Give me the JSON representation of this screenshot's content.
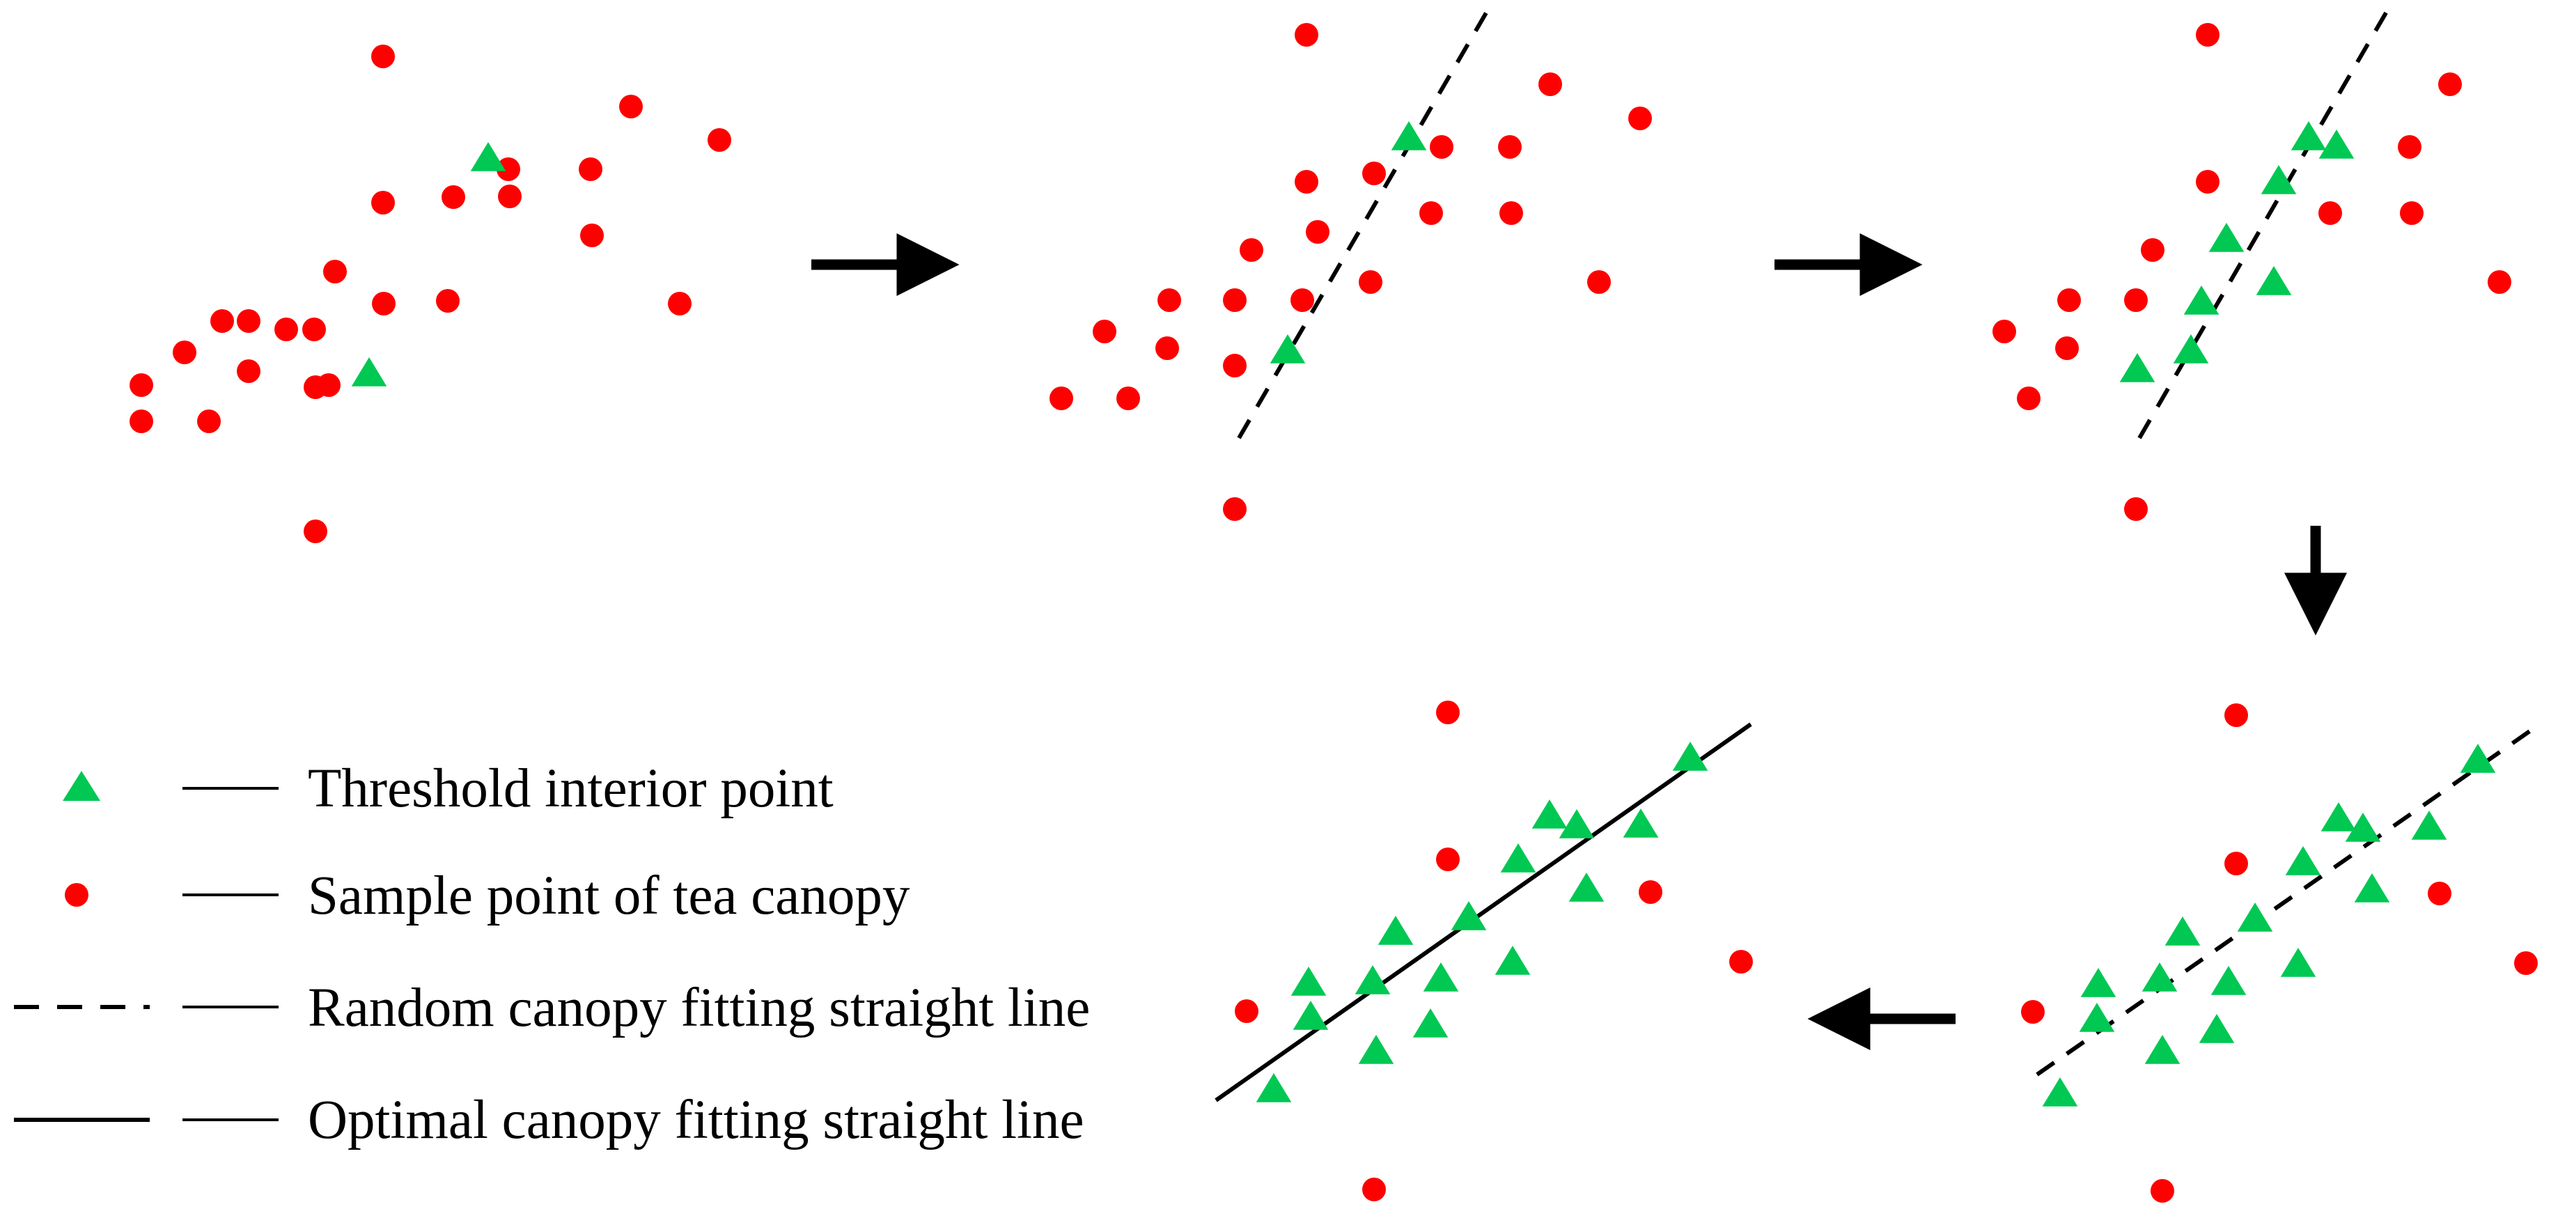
{
  "colors": {
    "sample": "#ff0000",
    "inlier": "#00c853",
    "line": "#000000",
    "background": "#ffffff"
  },
  "legend": [
    {
      "symbol": "triangle",
      "label": "Threshold interior point"
    },
    {
      "symbol": "circle",
      "label": "Sample point of tea canopy"
    },
    {
      "symbol": "dashed-line",
      "label": "Random canopy fitting straight line"
    },
    {
      "symbol": "solid-line",
      "label": "Optimal canopy fitting straight line"
    }
  ],
  "panels": [
    {
      "name": "panel-1-initial-samples",
      "line": null,
      "circles": [
        [
          550,
          81
        ],
        [
          550,
          291
        ],
        [
          481,
          390
        ],
        [
          451,
          473
        ],
        [
          411,
          473
        ],
        [
          357,
          461
        ],
        [
          319,
          461
        ],
        [
          203,
          553
        ],
        [
          472,
          553
        ],
        [
          357,
          533
        ],
        [
          265,
          506
        ],
        [
          551,
          436
        ],
        [
          643,
          432
        ],
        [
          732,
          282
        ],
        [
          730,
          243
        ],
        [
          848,
          243
        ],
        [
          850,
          338
        ],
        [
          976,
          436
        ],
        [
          1033,
          201
        ],
        [
          906,
          153
        ],
        [
          453,
          556
        ],
        [
          453,
          763
        ],
        [
          300,
          605
        ],
        [
          203,
          605
        ],
        [
          651,
          283
        ]
      ],
      "triangles": [
        [
          701,
          226
        ],
        [
          530,
          535
        ]
      ]
    },
    {
      "name": "panel-2-random-fit",
      "line": {
        "style": "dashed",
        "from": [
          1779,
          629
        ],
        "to": [
          2136,
          15
        ]
      },
      "circles": [
        [
          1876,
          50
        ],
        [
          1876,
          261
        ],
        [
          1797,
          359
        ],
        [
          1773,
          431
        ],
        [
          1773,
          525
        ],
        [
          1679,
          431
        ],
        [
          1676,
          500
        ],
        [
          1586,
          476
        ],
        [
          1524,
          572
        ],
        [
          1620,
          572
        ],
        [
          1892,
          333
        ],
        [
          1870,
          431
        ],
        [
          1968,
          405
        ],
        [
          1973,
          249
        ],
        [
          2070,
          211
        ],
        [
          2055,
          306
        ],
        [
          2170,
          306
        ],
        [
          2168,
          211
        ],
        [
          2226,
          121
        ],
        [
          2355,
          170
        ],
        [
          2296,
          405
        ],
        [
          1773,
          731
        ]
      ],
      "triangles": [
        [
          2023,
          196
        ],
        [
          1849,
          502
        ]
      ]
    },
    {
      "name": "panel-3-inliers-found",
      "line": {
        "style": "dashed",
        "from": [
          3072,
          629
        ],
        "to": [
          3428,
          15
        ]
      },
      "circles": [
        [
          3170,
          50
        ],
        [
          3170,
          261
        ],
        [
          3091,
          359
        ],
        [
          3067,
          431
        ],
        [
          2971,
          431
        ],
        [
          2968,
          500
        ],
        [
          2878,
          476
        ],
        [
          2913,
          572
        ],
        [
          3346,
          306
        ],
        [
          3463,
          306
        ],
        [
          3460,
          211
        ],
        [
          3518,
          121
        ],
        [
          3589,
          405
        ],
        [
          3067,
          731
        ]
      ],
      "triangles": [
        [
          3315,
          196
        ],
        [
          3355,
          208
        ],
        [
          3272,
          259
        ],
        [
          3197,
          342
        ],
        [
          3161,
          432
        ],
        [
          3265,
          404
        ],
        [
          3146,
          502
        ],
        [
          3069,
          529
        ]
      ]
    },
    {
      "name": "panel-4-refit",
      "line": {
        "style": "dashed",
        "from": [
          2925,
          1543
        ],
        "to": [
          3641,
          1044
        ]
      },
      "circles": [
        [
          3211,
          1027
        ],
        [
          3211,
          1240
        ],
        [
          3503,
          1283
        ],
        [
          2919,
          1453
        ],
        [
          3627,
          1383
        ],
        [
          3105,
          1710
        ]
      ],
      "triangles": [
        [
          3558,
          1090
        ],
        [
          3488,
          1186
        ],
        [
          3358,
          1174
        ],
        [
          3393,
          1189
        ],
        [
          3307,
          1237
        ],
        [
          3406,
          1276
        ],
        [
          3238,
          1318
        ],
        [
          3134,
          1338
        ],
        [
          3013,
          1412
        ],
        [
          3101,
          1404
        ],
        [
          3200,
          1409
        ],
        [
          3300,
          1383
        ],
        [
          3183,
          1478
        ],
        [
          3011,
          1462
        ],
        [
          3105,
          1508
        ],
        [
          2958,
          1569
        ]
      ]
    },
    {
      "name": "panel-5-optimal-fit",
      "line": {
        "style": "solid",
        "from": [
          1746,
          1580
        ],
        "to": [
          2514,
          1040
        ]
      },
      "circles": [
        [
          2079,
          1023
        ],
        [
          2079,
          1234
        ],
        [
          2370,
          1281
        ],
        [
          2500,
          1381
        ],
        [
          1790,
          1452
        ],
        [
          1973,
          1708
        ]
      ],
      "triangles": [
        [
          2427,
          1087
        ],
        [
          2225,
          1170
        ],
        [
          2264,
          1184
        ],
        [
          2356,
          1183
        ],
        [
          2180,
          1233
        ],
        [
          2278,
          1275
        ],
        [
          2109,
          1316
        ],
        [
          2004,
          1337
        ],
        [
          1971,
          1408
        ],
        [
          2069,
          1404
        ],
        [
          2172,
          1380
        ],
        [
          1879,
          1410
        ],
        [
          1882,
          1459
        ],
        [
          2054,
          1470
        ],
        [
          1976,
          1508
        ],
        [
          1829,
          1563
        ]
      ]
    }
  ],
  "arrows": [
    {
      "name": "arrow-step-1",
      "direction": "right"
    },
    {
      "name": "arrow-step-2",
      "direction": "right"
    },
    {
      "name": "arrow-step-3",
      "direction": "down"
    },
    {
      "name": "arrow-step-4",
      "direction": "left"
    }
  ]
}
